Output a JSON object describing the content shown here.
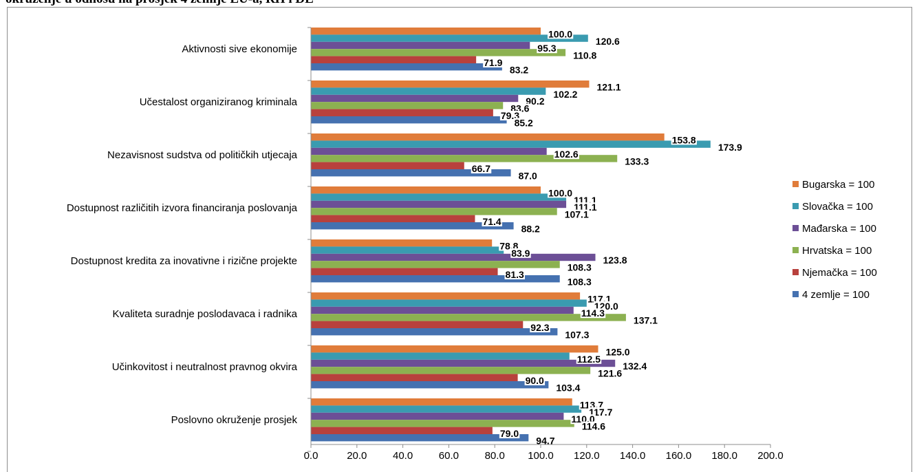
{
  "title": "okruženje u odnosu na prosjek 4 zemlje EU-a, RH i DE",
  "chart_data": {
    "type": "bar",
    "orientation": "horizontal",
    "xlim": [
      0,
      200
    ],
    "xticks": [
      "0.0",
      "20.0",
      "40.0",
      "60.0",
      "80.0",
      "100.0",
      "120.0",
      "140.0",
      "160.0",
      "180.0",
      "200.0"
    ],
    "grid": false,
    "legend_position": "right",
    "categories": [
      "Aktivnosti sive ekonomije",
      "Učestalost organiziranog kriminala",
      "Nezavisnost sudstva od političkih utjecaja",
      "Dostupnost različitih izvora financiranja poslovanja",
      "Dostupnost kredita za inovativne i rizične projekte",
      "Kvaliteta suradnje poslodavaca i radnika",
      "Učinkovitost i neutralnost pravnog okvira",
      "Poslovno okruženje prosjek"
    ],
    "series": [
      {
        "name": "Bugarska = 100",
        "color": "#e07c3a",
        "values": [
          100.0,
          121.1,
          153.8,
          100.0,
          78.8,
          117.1,
          125.0,
          113.7
        ],
        "labels": [
          "100.0",
          "121.1",
          "153.8",
          "100.0",
          "78.8",
          "117.1",
          "125.0",
          "113.7"
        ]
      },
      {
        "name": "Slovačka = 100",
        "color": "#3a9bb0",
        "values": [
          120.6,
          102.2,
          173.9,
          111.1,
          83.9,
          120.0,
          112.5,
          117.7
        ],
        "labels": [
          "120.6",
          "102.2",
          "173.9",
          "111.1",
          "83.9",
          "120.0",
          "112.5",
          "117.7"
        ]
      },
      {
        "name": "Mađarska = 100",
        "color": "#6c4f96",
        "values": [
          95.3,
          90.2,
          102.6,
          111.1,
          123.8,
          114.3,
          132.4,
          110.0
        ],
        "labels": [
          "95.3",
          "90.2",
          "102.6",
          "111.1",
          "123.8",
          "114.3",
          "132.4",
          "110.0"
        ]
      },
      {
        "name": "Hrvatska = 100",
        "color": "#8cb151",
        "values": [
          110.8,
          83.6,
          133.3,
          107.1,
          108.3,
          137.1,
          121.6,
          114.6
        ],
        "labels": [
          "110.8",
          "83.6",
          "133.3",
          "107.1",
          "108.3",
          "137.1",
          "121.6",
          "114.6"
        ]
      },
      {
        "name": "Njemačka = 100",
        "color": "#b8413d",
        "values": [
          71.9,
          79.3,
          66.7,
          71.4,
          81.3,
          92.3,
          90.0,
          79.0
        ],
        "labels": [
          "71.9",
          "79.3",
          "66.7",
          "71.4",
          "81.3",
          "92.3",
          "90.0",
          "79.0"
        ]
      },
      {
        "name": "4 zemlje = 100",
        "color": "#4571b0",
        "values": [
          83.2,
          85.2,
          87.0,
          88.2,
          108.3,
          107.3,
          103.4,
          94.7
        ],
        "labels": [
          "83.2",
          "85.2",
          "87.0",
          "88.2",
          "108.3",
          "107.3",
          "103.4",
          "94.7"
        ]
      }
    ]
  }
}
